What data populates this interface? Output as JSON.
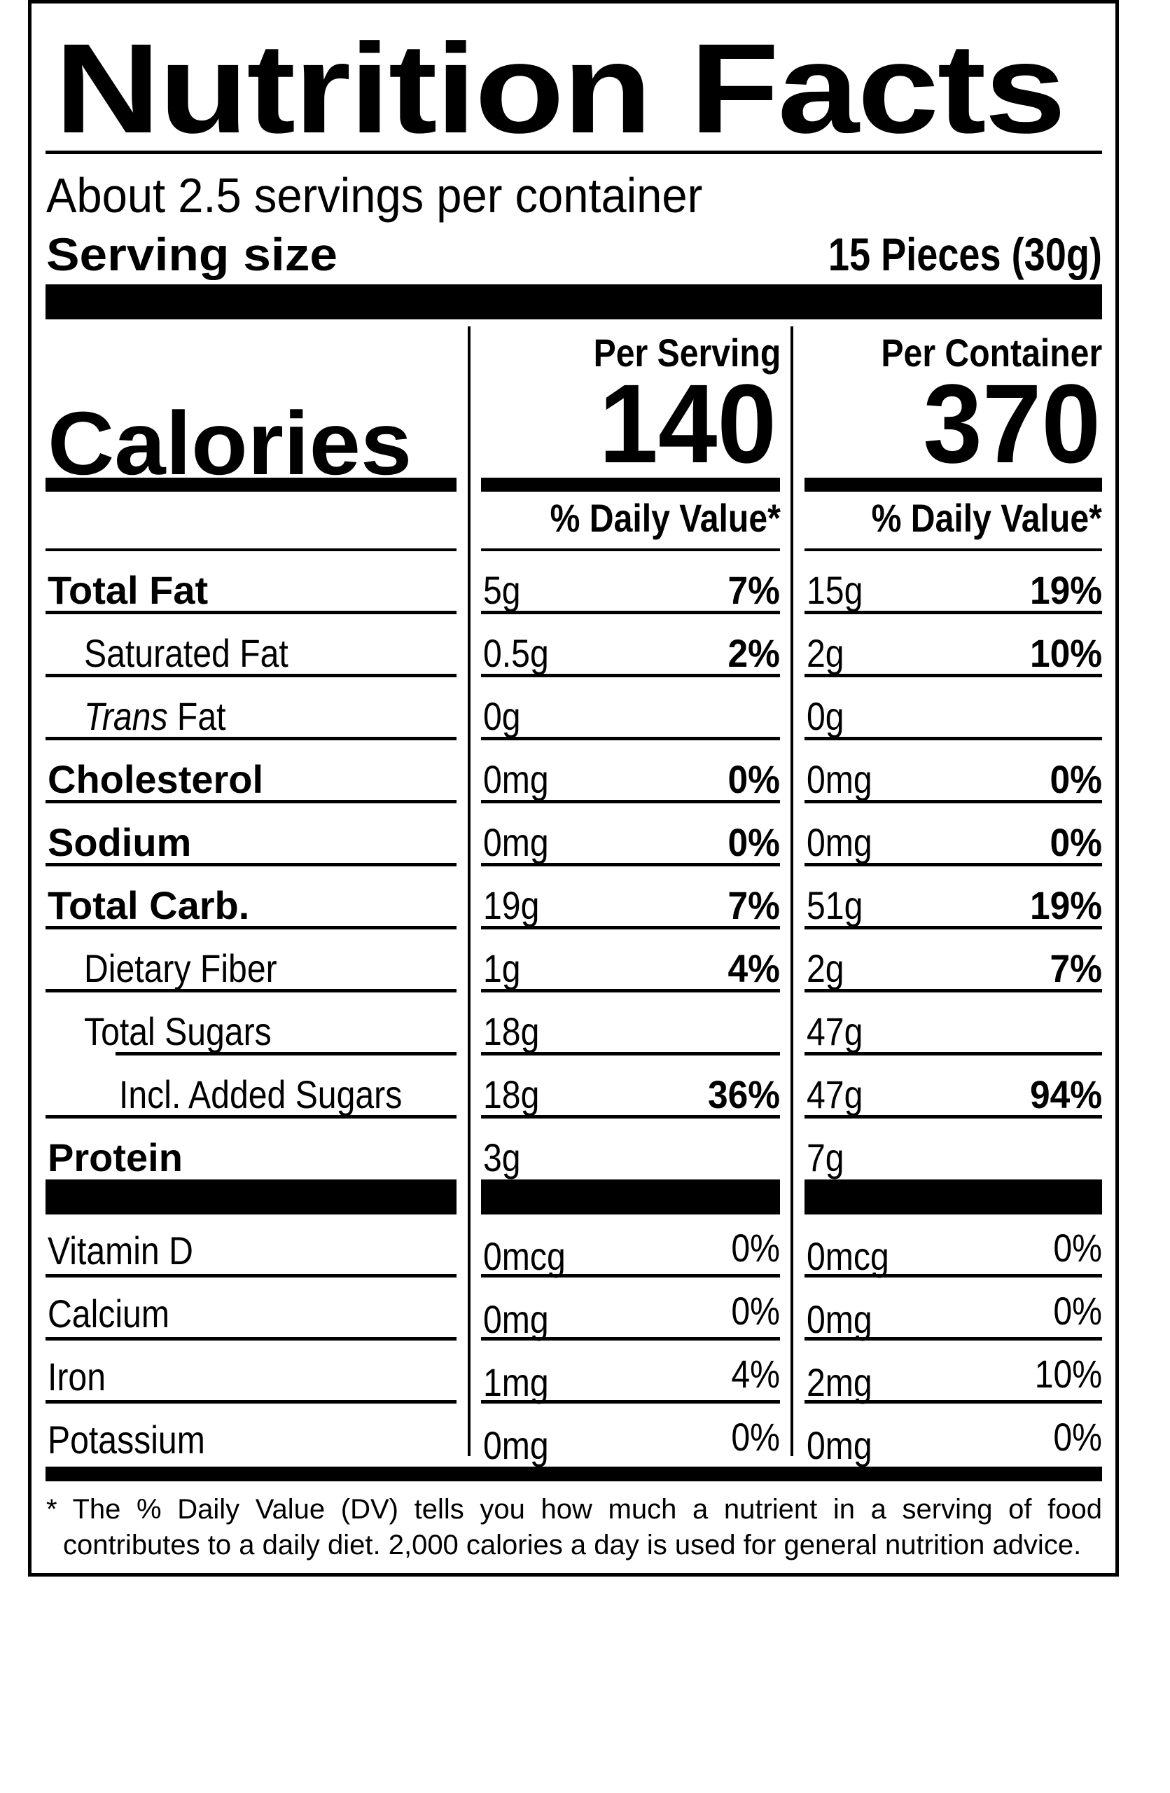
{
  "label": {
    "title": "Nutrition Facts",
    "servings_per_container": "About 2.5 servings per container",
    "serving_size_label": "Serving size",
    "serving_size_value": "15 Pieces (30g)",
    "calories_label": "Calories",
    "columns": [
      {
        "heading": "Per Serving",
        "calories": "140",
        "dv_heading": "% Daily Value*"
      },
      {
        "heading": "Per Container",
        "calories": "370",
        "dv_heading": "% Daily Value*"
      }
    ],
    "nutrients": [
      {
        "name": "Total Fat",
        "style": "bold",
        "indent": 0,
        "serving": {
          "amount": "5g",
          "dv": "7%"
        },
        "container": {
          "amount": "15g",
          "dv": "19%"
        }
      },
      {
        "name": "Saturated Fat",
        "style": "normal",
        "indent": 1,
        "serving": {
          "amount": "0.5g",
          "dv": "2%"
        },
        "container": {
          "amount": "2g",
          "dv": "10%"
        }
      },
      {
        "name_italic": "Trans",
        "name_rest": " Fat",
        "name": "Trans Fat",
        "style": "normal",
        "indent": 1,
        "serving": {
          "amount": "0g",
          "dv": ""
        },
        "container": {
          "amount": "0g",
          "dv": ""
        }
      },
      {
        "name": "Cholesterol",
        "style": "bold",
        "indent": 0,
        "serving": {
          "amount": "0mg",
          "dv": "0%"
        },
        "container": {
          "amount": "0mg",
          "dv": "0%"
        }
      },
      {
        "name": "Sodium",
        "style": "bold",
        "indent": 0,
        "serving": {
          "amount": "0mg",
          "dv": "0%"
        },
        "container": {
          "amount": "0mg",
          "dv": "0%"
        }
      },
      {
        "name": "Total Carb.",
        "style": "bold",
        "indent": 0,
        "serving": {
          "amount": "19g",
          "dv": "7%"
        },
        "container": {
          "amount": "51g",
          "dv": "19%"
        }
      },
      {
        "name": "Dietary Fiber",
        "style": "normal",
        "indent": 1,
        "serving": {
          "amount": "1g",
          "dv": "4%"
        },
        "container": {
          "amount": "2g",
          "dv": "7%"
        }
      },
      {
        "name": "Total Sugars",
        "style": "normal",
        "indent": 1,
        "serving": {
          "amount": "18g",
          "dv": ""
        },
        "container": {
          "amount": "47g",
          "dv": ""
        }
      },
      {
        "name": "Incl. Added Sugars",
        "style": "normal",
        "indent": 2,
        "serving": {
          "amount": "18g",
          "dv": "36%"
        },
        "container": {
          "amount": "47g",
          "dv": "94%"
        }
      },
      {
        "name": "Protein",
        "style": "bold",
        "indent": 0,
        "serving": {
          "amount": "3g",
          "dv": ""
        },
        "container": {
          "amount": "7g",
          "dv": ""
        }
      }
    ],
    "vitamins_minerals": [
      {
        "name": "Vitamin D",
        "serving": {
          "amount": "0mcg",
          "dv": "0%"
        },
        "container": {
          "amount": "0mcg",
          "dv": "0%"
        }
      },
      {
        "name": "Calcium",
        "serving": {
          "amount": "0mg",
          "dv": "0%"
        },
        "container": {
          "amount": "0mg",
          "dv": "0%"
        }
      },
      {
        "name": "Iron",
        "serving": {
          "amount": "1mg",
          "dv": "4%"
        },
        "container": {
          "amount": "2mg",
          "dv": "10%"
        }
      },
      {
        "name": "Potassium",
        "serving": {
          "amount": "0mg",
          "dv": "0%"
        },
        "container": {
          "amount": "0mg",
          "dv": "0%"
        }
      }
    ],
    "footnote": {
      "line1": "* The % Daily Value (DV) tells you how much a nutrient in a serving of food",
      "line2": "contributes to a daily diet. 2,000 calories a day is used for general nutrition advice."
    }
  },
  "colors": {
    "ink": "#000000",
    "background": "#ffffff"
  }
}
